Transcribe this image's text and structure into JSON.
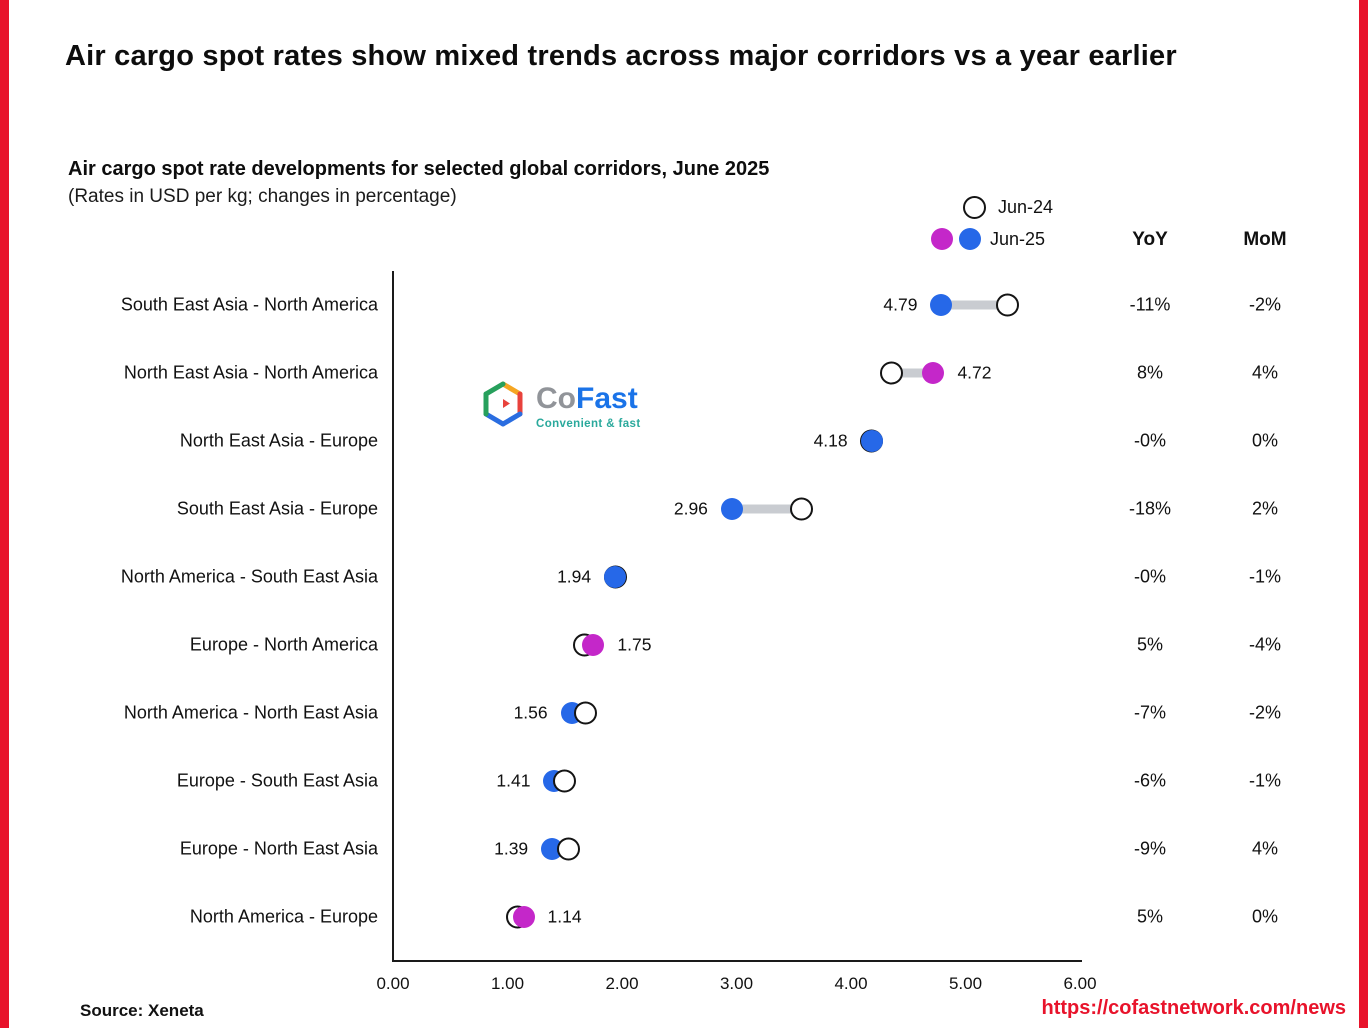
{
  "page": {
    "title": "Air cargo spot rates show mixed trends across major corridors vs a year earlier",
    "subtitle": "Air cargo spot rate developments for selected global corridors, June 2025",
    "subtitle2": "(Rates in USD per kg; changes in percentage)",
    "source": "Source: Xeneta",
    "url": "https://cofastnetwork.com/news",
    "accent_red": "#e8132b"
  },
  "logo": {
    "text_co": "Co",
    "text_fast": "Fast",
    "tagline": "Convenient & fast"
  },
  "legend": {
    "jun24_label": "Jun-24",
    "jun25_label": "Jun-25"
  },
  "columns": {
    "yoy": "YoY",
    "mom": "MoM"
  },
  "chart_data": {
    "type": "dumbbell",
    "title": "Air cargo spot rate developments for selected global corridors, June 2025",
    "xlabel": "Rate in USD per kg",
    "xlim": [
      0,
      6
    ],
    "xlabel_ticks": [
      "0.00",
      "1.00",
      "2.00",
      "3.00",
      "4.00",
      "5.00",
      "6.00"
    ],
    "legend_position": "top-right",
    "grid": false,
    "rows": [
      {
        "corridor": "South East Asia - North America",
        "jun25": 4.79,
        "jun24": 5.37,
        "label": "4.79",
        "label_side": "left",
        "dot_color": "blue",
        "yoy": "-11%",
        "mom": "-2%"
      },
      {
        "corridor": "North East Asia - North America",
        "jun25": 4.72,
        "jun24": 4.35,
        "label": "4.72",
        "label_side": "right",
        "dot_color": "magenta",
        "yoy": "8%",
        "mom": "4%"
      },
      {
        "corridor": "North East Asia - Europe",
        "jun25": 4.18,
        "jun24": 4.18,
        "label": "4.18",
        "label_side": "left",
        "dot_color": "blue",
        "yoy": "-0%",
        "mom": "0%"
      },
      {
        "corridor": "South East Asia - Europe",
        "jun25": 2.96,
        "jun24": 3.57,
        "label": "2.96",
        "label_side": "left",
        "dot_color": "blue",
        "yoy": "-18%",
        "mom": "2%"
      },
      {
        "corridor": "North America - South East Asia",
        "jun25": 1.94,
        "jun24": 1.94,
        "label": "1.94",
        "label_side": "left",
        "dot_color": "blue",
        "yoy": "-0%",
        "mom": "-1%"
      },
      {
        "corridor": "Europe - North America",
        "jun25": 1.75,
        "jun24": 1.67,
        "label": "1.75",
        "label_side": "right",
        "dot_color": "magenta",
        "yoy": "5%",
        "mom": "-4%"
      },
      {
        "corridor": "North America - North East Asia",
        "jun25": 1.56,
        "jun24": 1.68,
        "label": "1.56",
        "label_side": "left",
        "dot_color": "blue",
        "yoy": "-7%",
        "mom": "-2%"
      },
      {
        "corridor": "Europe - South East Asia",
        "jun25": 1.41,
        "jun24": 1.5,
        "label": "1.41",
        "label_side": "left",
        "dot_color": "blue",
        "yoy": "-6%",
        "mom": "-1%"
      },
      {
        "corridor": "Europe - North East Asia",
        "jun25": 1.39,
        "jun24": 1.53,
        "label": "1.39",
        "label_side": "left",
        "dot_color": "blue",
        "yoy": "-9%",
        "mom": "4%"
      },
      {
        "corridor": "North America - Europe",
        "jun25": 1.14,
        "jun24": 1.09,
        "label": "1.14",
        "label_side": "right",
        "dot_color": "magenta",
        "yoy": "5%",
        "mom": "0%"
      }
    ],
    "colors": {
      "jun25_increase": "#c427c9",
      "jun25_decrease": "#2668e8",
      "jun24_fill": "#ffffff",
      "jun24_stroke": "#141414",
      "connector": "#c9ccd1"
    }
  }
}
